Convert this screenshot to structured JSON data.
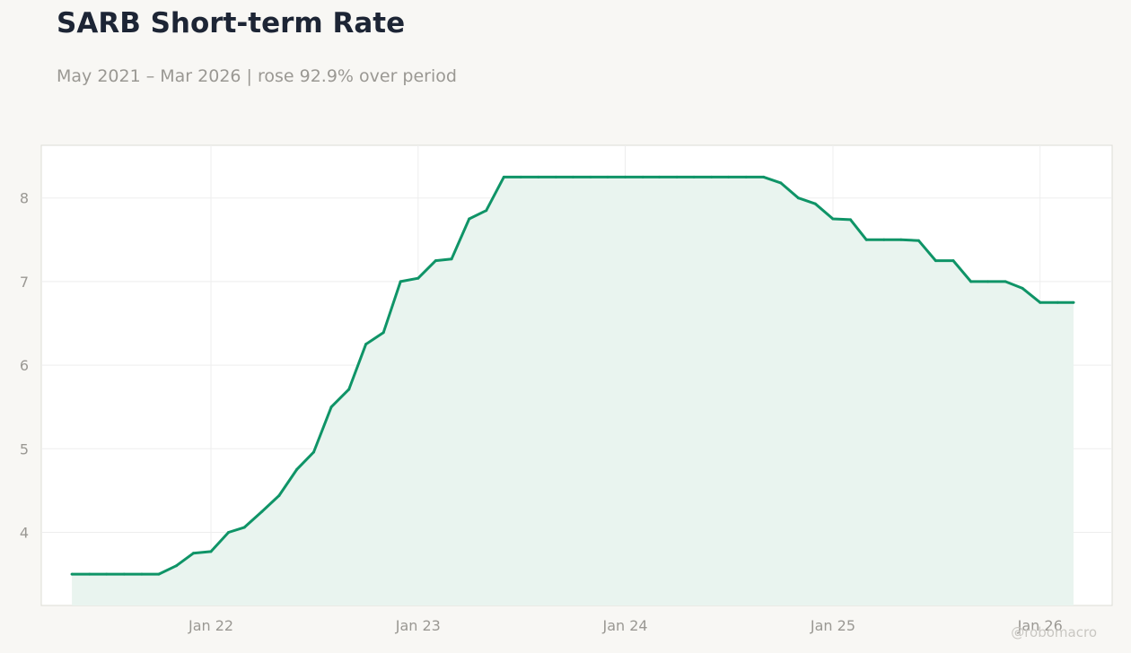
{
  "header": {
    "title": "SARB Short-term Rate",
    "subtitle": "May 2021 – Mar 2026 | rose 92.9% over period"
  },
  "watermark": "@robomacro",
  "colors": {
    "background": "#f8f7f4",
    "line": "#0f9467",
    "fill": "#e9f4ef",
    "grid": "#eeeeee",
    "text": "#9a9893",
    "title": "#1d2535"
  },
  "chart_data": {
    "type": "area",
    "title": "SARB Short-term Rate",
    "subtitle": "May 2021 – Mar 2026 | rose 92.9% over period",
    "xlabel": "",
    "ylabel": "",
    "x_ticks": [
      "Jan 22",
      "Jan 23",
      "Jan 24",
      "Jan 25",
      "Jan 26"
    ],
    "y_ticks": [
      4,
      5,
      6,
      7,
      8
    ],
    "ylim": [
      3.125,
      8.63
    ],
    "xlim": [
      "2021-03-08",
      "2026-05-08"
    ],
    "grid": true,
    "legend": "none",
    "series": [
      {
        "x": [
          "2021-05-01",
          "2021-06-01",
          "2021-07-01",
          "2021-08-01",
          "2021-09-01",
          "2021-10-01",
          "2021-11-01",
          "2021-12-01",
          "2022-01-01",
          "2022-02-01",
          "2022-03-01",
          "2022-04-01",
          "2022-05-01",
          "2022-06-01",
          "2022-07-01",
          "2022-08-01",
          "2022-09-01",
          "2022-10-01",
          "2022-11-01",
          "2022-12-01",
          "2023-01-01",
          "2023-02-01",
          "2023-03-01",
          "2023-04-01",
          "2023-05-01",
          "2023-06-01",
          "2023-07-01",
          "2023-08-01",
          "2023-09-01",
          "2023-10-01",
          "2023-11-01",
          "2023-12-01",
          "2024-01-01",
          "2024-02-01",
          "2024-03-01",
          "2024-04-01",
          "2024-05-01",
          "2024-06-01",
          "2024-07-01",
          "2024-08-01",
          "2024-09-01",
          "2024-10-01",
          "2024-11-01",
          "2024-12-01",
          "2025-01-01",
          "2025-02-01",
          "2025-03-01",
          "2025-04-01",
          "2025-05-01",
          "2025-06-01",
          "2025-07-01",
          "2025-08-01",
          "2025-09-01",
          "2025-10-01",
          "2025-11-01",
          "2025-12-01",
          "2026-01-01",
          "2026-02-01",
          "2026-03-01"
        ],
        "values": [
          3.5,
          3.5,
          3.5,
          3.5,
          3.5,
          3.5,
          3.6,
          3.75,
          3.77,
          4.0,
          4.06,
          4.25,
          4.44,
          4.75,
          4.96,
          5.5,
          5.71,
          6.25,
          6.39,
          7.0,
          7.04,
          7.25,
          7.27,
          7.75,
          7.85,
          8.25,
          8.25,
          8.25,
          8.25,
          8.25,
          8.25,
          8.25,
          8.25,
          8.25,
          8.25,
          8.25,
          8.25,
          8.25,
          8.25,
          8.25,
          8.25,
          8.18,
          8.0,
          7.93,
          7.75,
          7.74,
          7.5,
          7.5,
          7.5,
          7.49,
          7.25,
          7.25,
          7.0,
          7.0,
          7.0,
          6.92,
          6.75,
          6.75,
          6.75
        ]
      }
    ]
  }
}
